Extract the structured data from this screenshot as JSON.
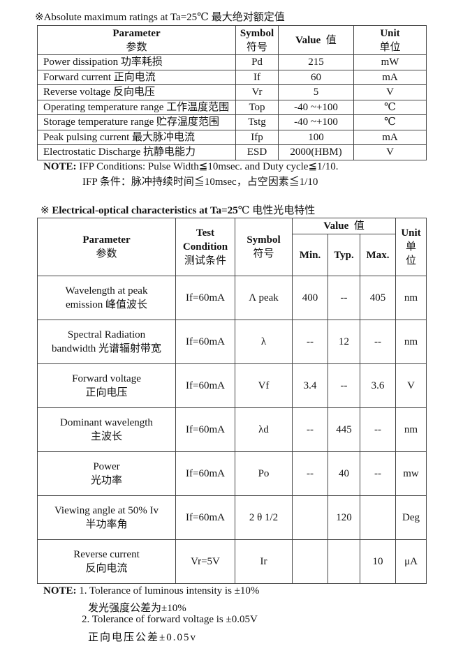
{
  "abs_max": {
    "title": "※Absolute maximum ratings at Ta=25℃  最大绝对额定值",
    "headers": {
      "parameter": "Parameter",
      "parameter_cn": "参数",
      "symbol": "Symbol",
      "symbol_cn": "符号",
      "value": "Value",
      "value_cn": "值",
      "unit": "Unit",
      "unit_cn": "单位"
    },
    "rows": [
      {
        "parameter": "Power dissipation  功率耗损",
        "symbol": "Pd",
        "value": "215",
        "unit": "mW"
      },
      {
        "parameter": "Forward current  正向电流",
        "symbol": "If",
        "value": "60",
        "unit": "mA"
      },
      {
        "parameter": "Reverse voltage  反向电压",
        "symbol": "Vr",
        "value": "5",
        "unit": "V"
      },
      {
        "parameter": "Operating temperature range  工作温度范围",
        "symbol": "Top",
        "value": "-40 ~+100",
        "unit": "℃"
      },
      {
        "parameter": "Storage temperature range  贮存温度范围",
        "symbol": "Tstg",
        "value": "-40 ~+100",
        "unit": "℃"
      },
      {
        "parameter": "Peak pulsing current  最大脉冲电流",
        "symbol": "Ifp",
        "value": "100",
        "unit": "mA"
      },
      {
        "parameter": "Electrostatic Discharge  抗静电能力",
        "symbol": "ESD",
        "value": "2000(HBM)",
        "unit": "V"
      }
    ],
    "note_label": "NOTE:",
    "note_line1": "IFP Conditions: Pulse Width≦10msec. and Duty cycle≦1/10.",
    "note_line2": "IFP  条件：脉冲持续时间≦10msec，占空因素≦1/10"
  },
  "eo": {
    "title_mark": "※",
    "title_bold": "Electrical-optical characteristics at Ta=25",
    "title_rest": "℃  电性光电特性",
    "headers": {
      "parameter": "Parameter",
      "parameter_cn": "参数",
      "test": "Test",
      "condition": "Condition",
      "test_cn": "测试条件",
      "symbol": "Symbol",
      "symbol_cn": "符号",
      "value": "Value",
      "value_cn": "值",
      "min": "Min.",
      "typ": "Typ.",
      "max": "Max.",
      "unit": "Unit",
      "unit_cn1": "单",
      "unit_cn2": "位"
    },
    "rows": [
      {
        "param1": "Wavelength at peak",
        "param2": "emission 峰值波长",
        "cond": "If=60mA",
        "symbol": "Λ peak",
        "min": "400",
        "typ": "--",
        "max": "405",
        "unit": "nm"
      },
      {
        "param1": "Spectral Radiation",
        "param2": "bandwidth 光谱辐射带宽",
        "cond": "If=60mA",
        "symbol": "λ",
        "min": "--",
        "typ": "12",
        "max": "--",
        "unit": "nm"
      },
      {
        "param1": "Forward voltage",
        "param2": "正向电压",
        "cond": "If=60mA",
        "symbol": "Vf",
        "min": "3.4",
        "typ": "--",
        "max": "3.6",
        "unit": "V"
      },
      {
        "param1": "Dominant wavelength",
        "param2": "主波长",
        "cond": "If=60mA",
        "symbol": "λd",
        "min": "--",
        "typ": "445",
        "max": "--",
        "unit": "nm"
      },
      {
        "param1": "Power",
        "param2": "光功率",
        "cond": "If=60mA",
        "symbol": "Po",
        "min": "--",
        "typ": "40",
        "max": "--",
        "unit": "mw"
      },
      {
        "param1": "Viewing angle at 50% Iv",
        "param2": "半功率角",
        "cond": "If=60mA",
        "symbol": "2 θ 1/2",
        "min": "",
        "typ": "120",
        "max": "",
        "unit": "Deg"
      },
      {
        "param1": "Reverse current",
        "param2": "反向电流",
        "cond": "Vr=5V",
        "symbol": "Ir",
        "min": "",
        "typ": "",
        "max": "10",
        "unit": "μA"
      }
    ],
    "note_label": "NOTE:",
    "note1": "1. Tolerance of luminous intensity is ±10%",
    "note1_cn": "发光强度公差为±10%",
    "note2": "2. Tolerance of forward voltage is ±0.05V",
    "note2_cn": "正向电压公差±0.05v"
  }
}
